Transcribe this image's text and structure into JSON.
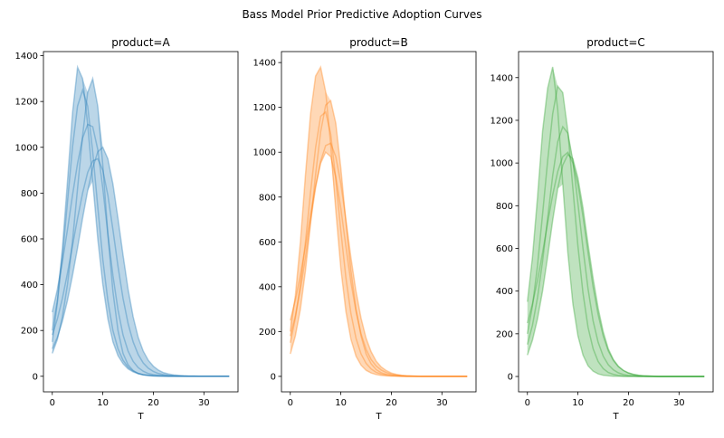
{
  "figure_title": "Bass Model Prior Predictive Adoption Curves",
  "chart_data": [
    {
      "type": "line",
      "title": "product=A",
      "xlabel": "T",
      "ylabel": "",
      "color": "#1f77b4",
      "xlim": [
        -1.75,
        36.75
      ],
      "ylim": [
        -68,
        1418
      ],
      "xticks": [
        0,
        10,
        20,
        30
      ],
      "yticks": [
        0,
        200,
        400,
        600,
        800,
        1000,
        1200,
        1400
      ],
      "grid": false,
      "shaded_band": true,
      "series": [
        {
          "values": [
            150,
            320,
            560,
            850,
            1150,
            1350,
            1300,
            1100,
            850,
            600,
            400,
            250,
            150,
            90,
            55,
            32,
            19,
            11,
            6,
            4,
            2,
            1,
            1,
            0,
            0,
            0,
            0,
            0,
            0,
            0,
            0,
            0,
            0,
            0,
            0,
            0
          ]
        },
        {
          "values": [
            200,
            330,
            520,
            760,
            1000,
            1180,
            1250,
            1180,
            980,
            740,
            510,
            330,
            200,
            120,
            70,
            40,
            23,
            13,
            7,
            4,
            2,
            1,
            1,
            0,
            0,
            0,
            0,
            0,
            0,
            0,
            0,
            0,
            0,
            0,
            0,
            0
          ]
        },
        {
          "values": [
            280,
            380,
            500,
            640,
            790,
            930,
            1040,
            1100,
            1090,
            990,
            820,
            620,
            440,
            290,
            180,
            110,
            65,
            38,
            22,
            12,
            7,
            4,
            2,
            1,
            1,
            0,
            0,
            0,
            0,
            0,
            0,
            0,
            0,
            0,
            0,
            0
          ]
        },
        {
          "values": [
            180,
            250,
            340,
            450,
            570,
            690,
            800,
            890,
            940,
            950,
            900,
            790,
            640,
            480,
            340,
            230,
            150,
            95,
            58,
            35,
            21,
            12,
            7,
            4,
            2,
            1,
            1,
            0,
            0,
            0,
            0,
            0,
            0,
            0,
            0,
            0
          ]
        },
        {
          "values": [
            120,
            170,
            240,
            330,
            440,
            560,
            690,
            810,
            910,
            980,
            1000,
            950,
            840,
            690,
            530,
            380,
            260,
            170,
            110,
            70,
            44,
            27,
            16,
            10,
            6,
            4,
            2,
            1,
            1,
            0,
            0,
            0,
            0,
            0,
            0,
            0
          ]
        },
        {
          "values": [
            100,
            160,
            260,
            400,
            590,
            820,
            1050,
            1240,
            1300,
            1180,
            920,
            620,
            370,
            200,
            100,
            50,
            25,
            12,
            6,
            3,
            1,
            1,
            0,
            0,
            0,
            0,
            0,
            0,
            0,
            0,
            0,
            0,
            0,
            0,
            0,
            0
          ]
        }
      ]
    },
    {
      "type": "line",
      "title": "product=B",
      "xlabel": "T",
      "ylabel": "",
      "color": "#ff7f0e",
      "xlim": [
        -1.75,
        36.75
      ],
      "ylim": [
        -69,
        1449
      ],
      "xticks": [
        0,
        10,
        20,
        30
      ],
      "yticks": [
        0,
        200,
        400,
        600,
        800,
        1000,
        1200,
        1400
      ],
      "grid": false,
      "shaded_band": true,
      "series": [
        {
          "values": [
            200,
            360,
            600,
            900,
            1170,
            1340,
            1380,
            1270,
            1030,
            740,
            480,
            290,
            165,
            90,
            50,
            27,
            15,
            8,
            4,
            2,
            1,
            1,
            0,
            0,
            0,
            0,
            0,
            0,
            0,
            0,
            0,
            0,
            0,
            0,
            0,
            0
          ]
        },
        {
          "values": [
            150,
            260,
            410,
            600,
            820,
            1020,
            1160,
            1180,
            1080,
            880,
            650,
            440,
            280,
            170,
            100,
            58,
            33,
            18,
            10,
            6,
            3,
            2,
            1,
            0,
            0,
            0,
            0,
            0,
            0,
            0,
            0,
            0,
            0,
            0,
            0,
            0
          ]
        },
        {
          "values": [
            250,
            340,
            450,
            580,
            720,
            850,
            950,
            1000,
            980,
            890,
            750,
            580,
            420,
            290,
            190,
            120,
            75,
            46,
            28,
            17,
            10,
            6,
            3,
            2,
            1,
            0,
            0,
            0,
            0,
            0,
            0,
            0,
            0,
            0,
            0,
            0
          ]
        },
        {
          "values": [
            100,
            180,
            300,
            470,
            680,
            900,
            1090,
            1210,
            1230,
            1130,
            930,
            690,
            470,
            300,
            180,
            100,
            56,
            30,
            16,
            9,
            5,
            2,
            1,
            0,
            0,
            0,
            0,
            0,
            0,
            0,
            0,
            0,
            0,
            0,
            0,
            0
          ]
        },
        {
          "values": [
            180,
            270,
            390,
            530,
            690,
            840,
            960,
            1030,
            1040,
            980,
            860,
            700,
            530,
            380,
            260,
            170,
            110,
            68,
            42,
            26,
            15,
            9,
            5,
            3,
            2,
            1,
            0,
            0,
            0,
            0,
            0,
            0,
            0,
            0,
            0,
            0
          ]
        }
      ]
    },
    {
      "type": "line",
      "title": "product=C",
      "xlabel": "T",
      "ylabel": "",
      "color": "#2ca02c",
      "xlim": [
        -1.75,
        36.75
      ],
      "ylim": [
        -72,
        1522
      ],
      "xticks": [
        0,
        10,
        20,
        30
      ],
      "yticks": [
        0,
        200,
        400,
        600,
        800,
        1000,
        1200,
        1400
      ],
      "grid": false,
      "shaded_band": true,
      "series": [
        {
          "values": [
            350,
            560,
            840,
            1150,
            1350,
            1450,
            1250,
            900,
            580,
            340,
            190,
            100,
            50,
            25,
            12,
            6,
            3,
            1,
            1,
            0,
            0,
            0,
            0,
            0,
            0,
            0,
            0,
            0,
            0,
            0,
            0,
            0,
            0,
            0,
            0,
            0
          ]
        },
        {
          "values": [
            200,
            330,
            520,
            760,
            1010,
            1230,
            1360,
            1330,
            1150,
            880,
            610,
            390,
            230,
            130,
            70,
            37,
            19,
            10,
            5,
            2,
            1,
            1,
            0,
            0,
            0,
            0,
            0,
            0,
            0,
            0,
            0,
            0,
            0,
            0,
            0,
            0
          ]
        },
        {
          "values": [
            150,
            240,
            370,
            540,
            740,
            940,
            1100,
            1170,
            1140,
            1010,
            810,
            600,
            410,
            260,
            160,
            95,
            55,
            31,
            17,
            9,
            5,
            3,
            1,
            1,
            0,
            0,
            0,
            0,
            0,
            0,
            0,
            0,
            0,
            0,
            0,
            0
          ]
        },
        {
          "values": [
            250,
            340,
            450,
            580,
            720,
            850,
            960,
            1030,
            1050,
            1000,
            900,
            750,
            580,
            420,
            290,
            190,
            120,
            75,
            46,
            28,
            17,
            10,
            6,
            3,
            2,
            1,
            0,
            0,
            0,
            0,
            0,
            0,
            0,
            0,
            0,
            0
          ]
        },
        {
          "values": [
            100,
            170,
            270,
            400,
            560,
            730,
            880,
            990,
            1040,
            1020,
            930,
            790,
            620,
            460,
            320,
            210,
            130,
            80,
            48,
            28,
            16,
            9,
            5,
            3,
            2,
            1,
            0,
            0,
            0,
            0,
            0,
            0,
            0,
            0,
            0,
            0
          ]
        }
      ]
    }
  ]
}
